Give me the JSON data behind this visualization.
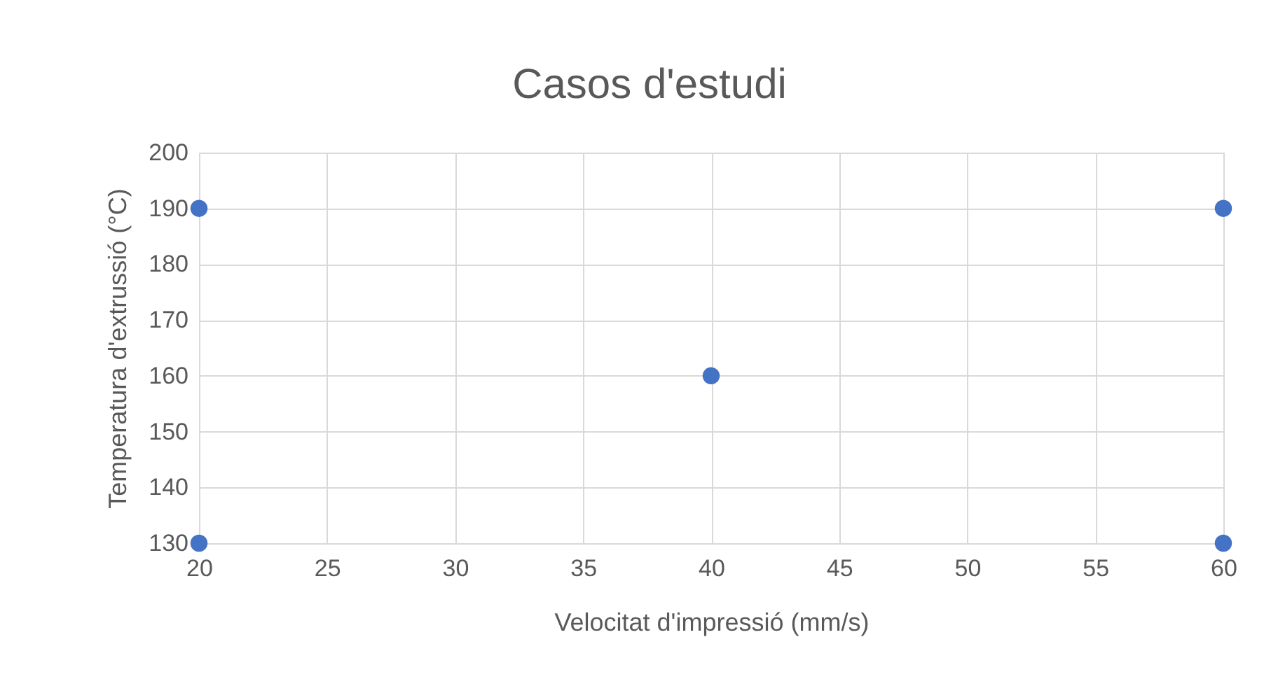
{
  "chart_data": {
    "type": "scatter",
    "title": "Casos d'estudi",
    "xlabel": "Velocitat d'impressió (mm/s)",
    "ylabel": "Temperatura d'extrussió (°C)",
    "x": [
      20,
      20,
      40,
      60,
      60
    ],
    "series": [
      {
        "color": "#4472c4",
        "values": [
          190,
          130,
          160,
          190,
          130
        ]
      }
    ],
    "xlim": [
      20,
      60
    ],
    "xticks": [
      20,
      25,
      30,
      35,
      40,
      45,
      50,
      55,
      60
    ],
    "ylim": [
      130,
      200
    ],
    "yticks": [
      130,
      140,
      150,
      160,
      170,
      180,
      190,
      200
    ],
    "grid": true,
    "marker": "circle"
  }
}
